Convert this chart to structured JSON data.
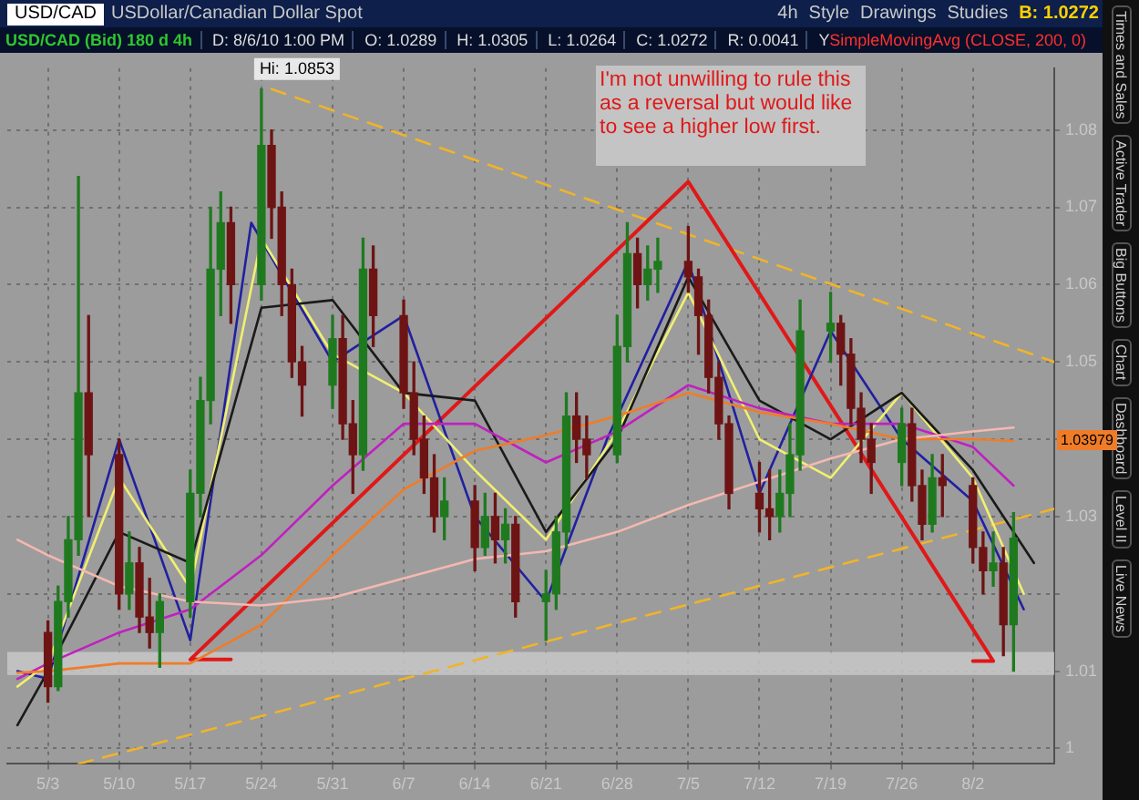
{
  "chart_data": {
    "type": "candlestick",
    "title": "USD/CAD",
    "subtitle": "USDollar/Canadian Dollar Spot",
    "x": [
      "--05-03",
      "--05-04",
      "--05-05",
      "--05-06",
      "--05-07",
      "--05-10",
      "--05-11",
      "--05-12",
      "--05-13",
      "--05-14",
      "--05-17",
      "--05-18",
      "--05-19",
      "--05-20",
      "--05-21",
      "--05-24",
      "--05-25",
      "--05-26",
      "--05-27",
      "--05-28",
      "--05-31",
      "--06-01",
      "--06-02",
      "--06-03",
      "--06-04",
      "--06-07",
      "--06-08",
      "--06-09",
      "--06-10",
      "--06-11",
      "--06-14",
      "--06-15",
      "--06-16",
      "--06-17",
      "--06-18",
      "--06-21",
      "--06-22",
      "--06-23",
      "--06-24",
      "--06-25",
      "--06-28",
      "--06-29",
      "--06-30",
      "--07-01",
      "--07-02",
      "--07-05",
      "--07-06",
      "--07-07",
      "--07-08",
      "--07-09",
      "--07-12",
      "--07-13",
      "--07-14",
      "--07-15",
      "--07-16",
      "--07-19",
      "--07-20",
      "--07-21",
      "--07-22",
      "--07-23",
      "--07-26",
      "--07-27",
      "--07-28",
      "--07-29",
      "--07-30",
      "--08-02",
      "--08-03",
      "--08-04",
      "--08-05",
      "--08-06"
    ],
    "ohlc": [
      [
        1.015,
        1.0165,
        1.006,
        1.008
      ],
      [
        1.008,
        1.021,
        1.0075,
        1.019
      ],
      [
        1.019,
        1.03,
        1.017,
        1.027
      ],
      [
        1.027,
        1.074,
        1.025,
        1.046
      ],
      [
        1.046,
        1.056,
        1.03,
        1.038
      ],
      [
        1.038,
        1.04,
        1.018,
        1.02
      ],
      [
        1.02,
        1.028,
        1.018,
        1.024
      ],
      [
        1.024,
        1.026,
        1.015,
        1.017
      ],
      [
        1.017,
        1.022,
        1.013,
        1.015
      ],
      [
        1.015,
        1.02,
        1.0105,
        1.019
      ],
      [
        1.019,
        1.036,
        1.017,
        1.033
      ],
      [
        1.033,
        1.048,
        1.03,
        1.045
      ],
      [
        1.045,
        1.07,
        1.042,
        1.062
      ],
      [
        1.062,
        1.072,
        1.056,
        1.068
      ],
      [
        1.068,
        1.07,
        1.055,
        1.06
      ],
      [
        1.06,
        1.0853,
        1.058,
        1.078
      ],
      [
        1.078,
        1.08,
        1.066,
        1.07
      ],
      [
        1.07,
        1.072,
        1.056,
        1.06
      ],
      [
        1.06,
        1.062,
        1.048,
        1.05
      ],
      [
        1.05,
        1.052,
        1.043,
        1.047
      ],
      [
        1.047,
        1.056,
        1.044,
        1.053
      ],
      [
        1.053,
        1.056,
        1.04,
        1.042
      ],
      [
        1.042,
        1.045,
        1.033,
        1.038
      ],
      [
        1.038,
        1.066,
        1.036,
        1.062
      ],
      [
        1.062,
        1.065,
        1.052,
        1.056
      ],
      [
        1.056,
        1.058,
        1.044,
        1.046
      ],
      [
        1.046,
        1.05,
        1.038,
        1.04
      ],
      [
        1.04,
        1.043,
        1.033,
        1.035
      ],
      [
        1.035,
        1.038,
        1.028,
        1.03
      ],
      [
        1.03,
        1.035,
        1.027,
        1.032
      ],
      [
        1.032,
        1.034,
        1.023,
        1.026
      ],
      [
        1.026,
        1.033,
        1.025,
        1.03
      ],
      [
        1.03,
        1.033,
        1.024,
        1.027
      ],
      [
        1.027,
        1.031,
        1.024,
        1.029
      ],
      [
        1.029,
        1.03,
        1.017,
        1.019
      ],
      [
        1.019,
        1.023,
        1.014,
        1.02
      ],
      [
        1.02,
        1.03,
        1.018,
        1.028
      ],
      [
        1.028,
        1.046,
        1.026,
        1.043
      ],
      [
        1.043,
        1.046,
        1.037,
        1.04
      ],
      [
        1.04,
        1.043,
        1.035,
        1.038
      ],
      [
        1.038,
        1.056,
        1.037,
        1.052
      ],
      [
        1.052,
        1.068,
        1.05,
        1.064
      ],
      [
        1.064,
        1.066,
        1.057,
        1.06
      ],
      [
        1.06,
        1.065,
        1.058,
        1.062
      ],
      [
        1.062,
        1.066,
        1.059,
        1.063
      ],
      [
        1.063,
        1.0675,
        1.059,
        1.061
      ],
      [
        1.061,
        1.062,
        1.051,
        1.056
      ],
      [
        1.056,
        1.058,
        1.046,
        1.048
      ],
      [
        1.048,
        1.05,
        1.04,
        1.042
      ],
      [
        1.042,
        1.043,
        1.031,
        1.033
      ],
      [
        1.033,
        1.037,
        1.028,
        1.031
      ],
      [
        1.031,
        1.036,
        1.027,
        1.03
      ],
      [
        1.03,
        1.036,
        1.028,
        1.033
      ],
      [
        1.033,
        1.042,
        1.03,
        1.038
      ],
      [
        1.038,
        1.058,
        1.036,
        1.054
      ],
      [
        1.054,
        1.059,
        1.05,
        1.055
      ],
      [
        1.055,
        1.056,
        1.047,
        1.051
      ],
      [
        1.051,
        1.053,
        1.042,
        1.044
      ],
      [
        1.044,
        1.046,
        1.037,
        1.04
      ],
      [
        1.04,
        1.042,
        1.033,
        1.037
      ],
      [
        1.037,
        1.044,
        1.034,
        1.042
      ],
      [
        1.042,
        1.044,
        1.032,
        1.034
      ],
      [
        1.034,
        1.036,
        1.027,
        1.029
      ],
      [
        1.029,
        1.038,
        1.028,
        1.035
      ],
      [
        1.035,
        1.038,
        1.03,
        1.034
      ],
      [
        1.034,
        1.035,
        1.024,
        1.026
      ],
      [
        1.026,
        1.028,
        1.02,
        1.023
      ],
      [
        1.023,
        1.028,
        1.021,
        1.024
      ],
      [
        1.024,
        1.026,
        1.012,
        1.016
      ],
      [
        1.016,
        1.0305,
        1.01,
        1.0272
      ]
    ],
    "colors": [
      "#6e1414",
      "#1f7a1f",
      "#1f7a1f",
      "#1f7a1f",
      "#6e1414",
      "#6e1414",
      "#1f7a1f",
      "#6e1414",
      "#6e1414",
      "#1f7a1f",
      "#1f7a1f",
      "#1f7a1f",
      "#1f7a1f",
      "#1f7a1f",
      "#6e1414",
      "#1f7a1f",
      "#6e1414",
      "#6e1414",
      "#6e1414",
      "#6e1414",
      "#1f7a1f",
      "#6e1414",
      "#6e1414",
      "#1f7a1f",
      "#6e1414",
      "#6e1414",
      "#6e1414",
      "#6e1414",
      "#6e1414",
      "#1f7a1f",
      "#6e1414",
      "#1f7a1f",
      "#6e1414",
      "#1f7a1f",
      "#6e1414",
      "#1f7a1f",
      "#1f7a1f",
      "#1f7a1f",
      "#6e1414",
      "#6e1414",
      "#1f7a1f",
      "#1f7a1f",
      "#6e1414",
      "#1f7a1f",
      "#1f7a1f",
      "#6e1414",
      "#6e1414",
      "#6e1414",
      "#6e1414",
      "#6e1414",
      "#6e1414",
      "#6e1414",
      "#1f7a1f",
      "#1f7a1f",
      "#1f7a1f",
      "#1f7a1f",
      "#6e1414",
      "#6e1414",
      "#6e1414",
      "#6e1414",
      "#1f7a1f",
      "#6e1414",
      "#6e1414",
      "#1f7a1f",
      "#6e1414",
      "#6e1414",
      "#6e1414",
      "#1f7a1f",
      "#6e1414",
      "#1f7a1f"
    ],
    "series": [
      {
        "type": "line",
        "color": "#f4b8b0",
        "x": [
          "--04-30",
          "--05-03",
          "--05-10",
          "--05-17",
          "--05-24",
          "--05-31",
          "--06-07",
          "--06-14",
          "--06-21",
          "--06-28",
          "--07-05",
          "--07-12",
          "--07-19",
          "--07-26",
          "--08-02",
          "--08-06"
        ],
        "values": [
          1.027,
          1.025,
          1.021,
          1.019,
          1.0185,
          1.0195,
          1.022,
          1.0245,
          1.0255,
          1.028,
          1.0315,
          1.0345,
          1.0375,
          1.04,
          1.041,
          1.0415
        ]
      },
      {
        "type": "line",
        "color": "#f07c28",
        "x": [
          "--04-30",
          "--05-03",
          "--05-10",
          "--05-17",
          "--05-24",
          "--05-31",
          "--06-07",
          "--06-14",
          "--06-21",
          "--06-28",
          "--07-05",
          "--07-12",
          "--07-19",
          "--07-26",
          "--08-02",
          "--08-06"
        ],
        "values": [
          1.0098,
          1.01,
          1.011,
          1.011,
          1.016,
          1.025,
          1.0335,
          1.0385,
          1.0405,
          1.043,
          1.046,
          1.0435,
          1.042,
          1.04,
          1.04,
          1.0398
        ]
      },
      {
        "type": "line",
        "color": "#c020c0",
        "x": [
          "--04-30",
          "--05-03",
          "--05-10",
          "--05-17",
          "--05-24",
          "--05-31",
          "--06-07",
          "--06-14",
          "--06-21",
          "--06-28",
          "--07-05",
          "--07-12",
          "--07-19",
          "--07-26",
          "--08-02",
          "--08-06"
        ],
        "values": [
          1.009,
          1.011,
          1.015,
          1.018,
          1.025,
          1.034,
          1.042,
          1.042,
          1.037,
          1.041,
          1.047,
          1.044,
          1.042,
          1.042,
          1.039,
          1.034
        ]
      },
      {
        "type": "line",
        "color": "#1a1a1a",
        "x": [
          "--04-30",
          "--05-03",
          "--05-10",
          "--05-17",
          "--05-24",
          "--05-31",
          "--06-07",
          "--06-14",
          "--06-21",
          "--06-28",
          "--07-05",
          "--07-12",
          "--07-19",
          "--07-26",
          "--08-02",
          "--08-08"
        ],
        "values": [
          1.003,
          1.01,
          1.028,
          1.024,
          1.057,
          1.058,
          1.046,
          1.045,
          1.028,
          1.04,
          1.061,
          1.045,
          1.04,
          1.046,
          1.036,
          1.024
        ]
      },
      {
        "type": "line",
        "color": "#f0f070",
        "x": [
          "--04-30",
          "--05-03",
          "--05-10",
          "--05-17",
          "--05-24",
          "--05-31",
          "--06-07",
          "--06-14",
          "--06-21",
          "--06-28",
          "--07-05",
          "--07-12",
          "--07-19",
          "--07-26",
          "--08-02",
          "--08-07"
        ],
        "values": [
          1.008,
          1.011,
          1.035,
          1.0207,
          1.066,
          1.051,
          1.046,
          1.036,
          1.027,
          1.041,
          1.059,
          1.04,
          1.035,
          1.046,
          1.035,
          1.02
        ]
      },
      {
        "type": "line",
        "color": "#2020a0",
        "x": [
          "--04-30",
          "--05-03",
          "--05-10",
          "--05-17",
          "--05-23",
          "--05-31",
          "--06-07",
          "--06-14",
          "--06-21",
          "--06-27",
          "--07-05",
          "--07-12",
          "--07-19",
          "--07-26",
          "--08-02",
          "--08-07"
        ],
        "values": [
          1.01,
          1.009,
          1.04,
          1.014,
          1.068,
          1.05,
          1.056,
          1.03,
          1.019,
          1.04,
          1.063,
          1.033,
          1.054,
          1.04,
          1.032,
          1.018
        ]
      },
      {
        "type": "line",
        "color": "#e01818",
        "x": [
          "--05-21",
          "--05-17",
          "--07-05",
          "--08-04",
          "--08-02"
        ],
        "values": [
          1.0115,
          1.0115,
          1.0733,
          1.0113,
          1.0113
        ]
      },
      {
        "type": "line",
        "color": "#f0b428",
        "line_style": "dashed",
        "x": [
          "--05-25",
          "--08-10"
        ],
        "values": [
          1.0853,
          1.05
        ]
      },
      {
        "type": "line",
        "color": "#f0b428",
        "line_style": "dashed",
        "x": [
          "--05-06",
          "--08-10"
        ],
        "values": [
          0.998,
          1.031
        ]
      }
    ],
    "bands": [
      {
        "axis": "y",
        "from": 1.0095,
        "to": 1.0125,
        "color": "#c8c8c8"
      }
    ],
    "xlim": [
      "--04-29",
      "--08-10"
    ],
    "xticks": [
      {
        "value": "--05-03",
        "label": "5/3"
      },
      {
        "value": "--05-10",
        "label": "5/10"
      },
      {
        "value": "--05-17",
        "label": "5/17"
      },
      {
        "value": "--05-24",
        "label": "5/24"
      },
      {
        "value": "--05-31",
        "label": "5/31"
      },
      {
        "value": "--06-07",
        "label": "6/7"
      },
      {
        "value": "--06-14",
        "label": "6/14"
      },
      {
        "value": "--06-21",
        "label": "6/21"
      },
      {
        "value": "--06-28",
        "label": "6/28"
      },
      {
        "value": "--07-05",
        "label": "7/5"
      },
      {
        "value": "--07-12",
        "label": "7/12"
      },
      {
        "value": "--07-19",
        "label": "7/19"
      },
      {
        "value": "--07-26",
        "label": "7/26"
      },
      {
        "value": "--08-02",
        "label": "8/2"
      }
    ],
    "ylim": [
      0.998,
      1.088
    ],
    "yticks": [
      1,
      1.01,
      {
        "value": 1.02,
        "label": null
      },
      1.03,
      {
        "value": 1.04,
        "label": null
      },
      1.05,
      1.06,
      1.07,
      1.08
    ],
    "grid": true,
    "annotations": [
      "I'm not unwilling to rule this as a reversal but would like to see a higher low first.",
      "1.03979",
      {
        "text": "Hi: 1.0853",
        "x": "--05-24",
        "y": 1.0853
      },
      "USD/CAD (Bid) 180 d 4h",
      "D: 8/6/10 1:00 PM",
      "O: 1.0289",
      "H: 1.0305",
      "L: 1.0264",
      "C: 1.0272",
      "R: 0.0041",
      "Y:",
      "SimpleMovingAvg (CLOSE, 200, 0)",
      "4h",
      "Style",
      "Drawings",
      "Studies",
      "B: 1.0272",
      "Times and Sales",
      "Active Trader",
      "Big Buttons",
      "Chart",
      "Dashboard",
      "Level II",
      "Live News"
    ]
  }
}
